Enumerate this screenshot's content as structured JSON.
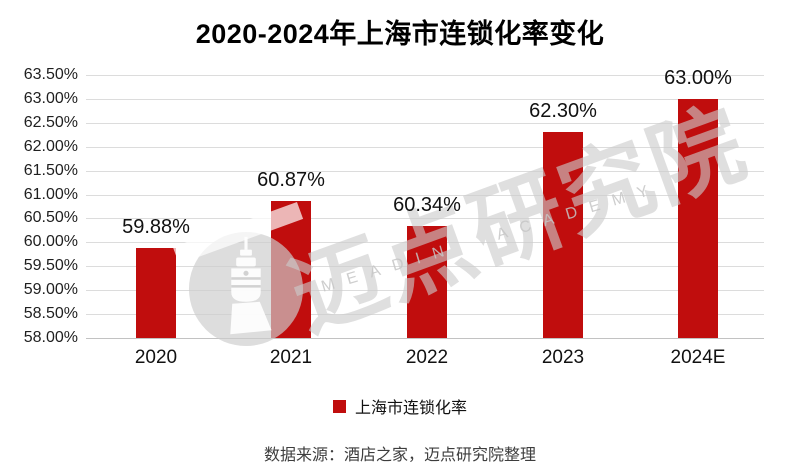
{
  "title": "2020-2024年上海市连锁化率变化",
  "chart_data": {
    "type": "bar",
    "categories": [
      "2020",
      "2021",
      "2022",
      "2023",
      "2024E"
    ],
    "series": [
      {
        "name": "上海市连锁化率",
        "values": [
          59.88,
          60.87,
          60.34,
          62.3,
          63.0
        ]
      }
    ],
    "value_labels": [
      "59.88%",
      "60.87%",
      "60.34%",
      "62.30%",
      "63.00%"
    ],
    "ylim": [
      58.0,
      63.5
    ],
    "ytick_step": 0.5,
    "ytick_labels": [
      "63.50%",
      "63.00%",
      "62.50%",
      "62.00%",
      "61.50%",
      "61.00%",
      "60.50%",
      "60.00%",
      "59.50%",
      "59.00%",
      "58.50%",
      "58.00%"
    ],
    "grid": true,
    "legend_position": "bottom",
    "bar_color": "#c00d0d"
  },
  "legend": {
    "label": "上海市连锁化率",
    "swatch_color": "#c00d0d"
  },
  "footer": {
    "source_text": "数据来源：酒店之家，迈点研究院整理"
  },
  "watermark": {
    "cn_text": "迈点研究院",
    "en_text": "MEADIN ACADEMY",
    "logo": "lighthouse-icon",
    "color": "#d9d9d9"
  },
  "colors": {
    "bar": "#c00d0d",
    "grid": "#dcdcdc",
    "axis_line": "#c2c2c2",
    "title_text": "#000000",
    "label_text": "#111111",
    "footer_text": "#3d3d3d",
    "watermark_gray": "#d9d9d9"
  }
}
